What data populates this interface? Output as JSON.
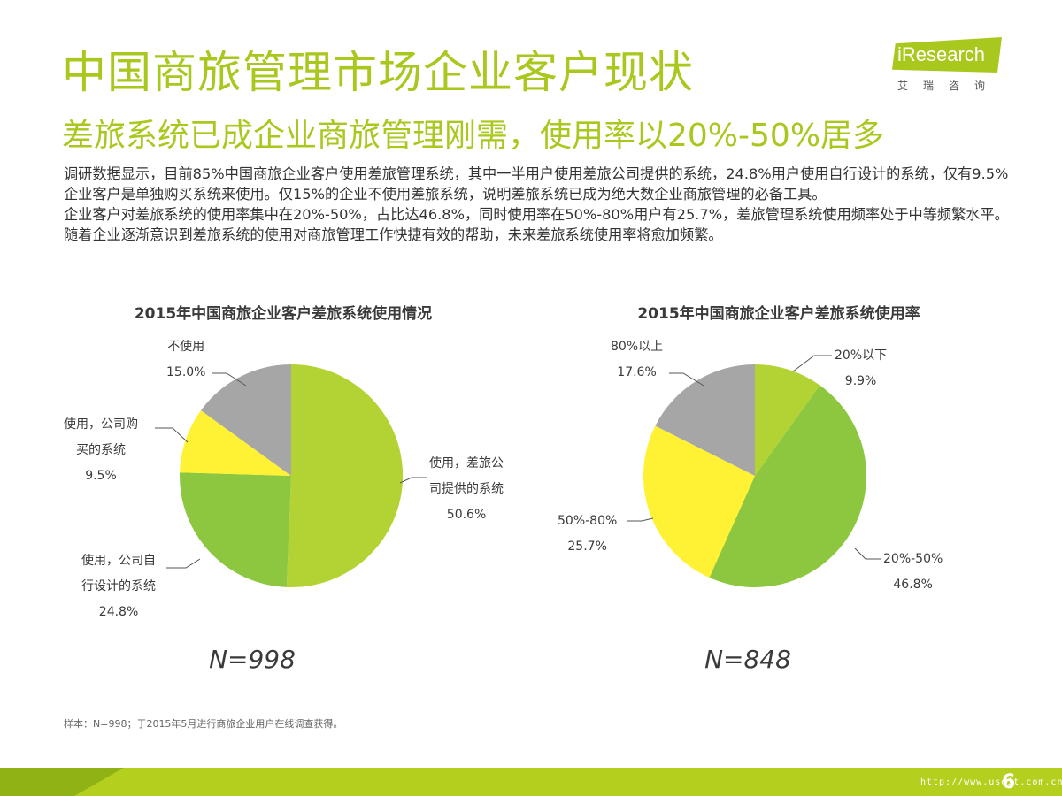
{
  "header": {
    "title": "中国商旅管理市场企业客户现状",
    "subtitle": "差旅系统已成企业商旅管理刚需，使用率以20%-50%居多"
  },
  "logo": {
    "brand": "iResearch",
    "brand_cn": "艾瑞咨询"
  },
  "body": {
    "paragraph1": "调研数据显示，目前85%中国商旅企业客户使用差旅管理系统，其中一半用户使用差旅公司提供的系统，24.8%用户使用自行设计的系统，仅有9.5%企业客户是单独购买系统来使用。仅15%的企业不使用差旅系统，说明差旅系统已成为绝大数企业商旅管理的必备工具。",
    "paragraph2": "企业客户对差旅系统的使用率集中在20%-50%，占比达46.8%，同时使用率在50%-80%用户有25.7%，差旅管理系统使用频率处于中等频繁水平。随着企业逐渐意识到差旅系统的使用对商旅管理工作快捷有效的帮助，未来差旅系统使用率将愈加频繁。"
  },
  "chart_data": [
    {
      "type": "pie",
      "title": "2015年中国商旅企业客户差旅系统使用情况",
      "sample_label": "N=998",
      "slices": [
        {
          "name": "使用，差旅公司提供的系统",
          "value": 50.6,
          "label_lines": [
            "使用，差旅公",
            "司提供的系统"
          ],
          "value_label": "50.6%",
          "color": "#b3d334"
        },
        {
          "name": "使用，公司自行设计的系统",
          "value": 24.8,
          "label_lines": [
            "使用，公司自",
            "行设计的系统"
          ],
          "value_label": "24.8%",
          "color": "#8dc63f"
        },
        {
          "name": "使用，公司购买的系统",
          "value": 9.5,
          "label_lines": [
            "使用，公司购",
            "买的系统"
          ],
          "value_label": "9.5%",
          "color": "#fff133"
        },
        {
          "name": "不使用",
          "value": 15.0,
          "label_lines": [
            "不使用"
          ],
          "value_label": "15.0%",
          "color": "#a6a6a6"
        }
      ]
    },
    {
      "type": "pie",
      "title": "2015年中国商旅企业客户差旅系统使用率",
      "sample_label": "N=848",
      "slices": [
        {
          "name": "20%以下",
          "value": 9.9,
          "label_lines": [
            "20%以下"
          ],
          "value_label": "9.9%",
          "color": "#b3d334"
        },
        {
          "name": "20%-50%",
          "value": 46.8,
          "label_lines": [
            "20%-50%"
          ],
          "value_label": "46.8%",
          "color": "#8dc63f"
        },
        {
          "name": "50%-80%",
          "value": 25.7,
          "label_lines": [
            "50%-80%"
          ],
          "value_label": "25.7%",
          "color": "#fff133"
        },
        {
          "name": "80%以上",
          "value": 17.6,
          "label_lines": [
            "80%以上"
          ],
          "value_label": "17.6%",
          "color": "#a6a6a6"
        }
      ]
    }
  ],
  "footer": {
    "note": "样本：N=998；于2015年5月进行商旅企业用户在线调查获得。",
    "page_number": "6",
    "url": "http://www.useit.com.cn"
  }
}
